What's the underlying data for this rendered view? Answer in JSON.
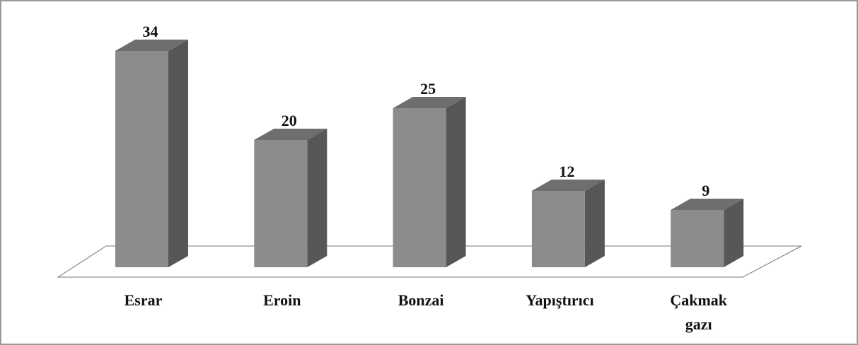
{
  "chart_data": {
    "type": "bar3d",
    "categories": [
      "Esrar",
      "Eroin",
      "Bonzai",
      "Yapıştırıcı",
      "Çakmak\ngazı"
    ],
    "values": [
      34,
      20,
      25,
      12,
      9
    ],
    "colors": {
      "front": "#8c8c8c",
      "side": "#575757",
      "top": "#6e6e6e"
    }
  }
}
